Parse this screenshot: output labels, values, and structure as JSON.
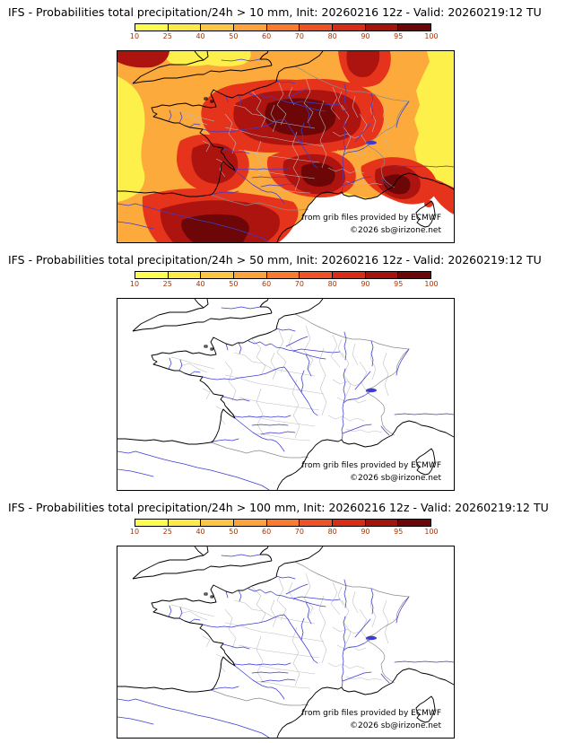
{
  "colorbar": {
    "tick_labels": [
      "10",
      "25",
      "40",
      "50",
      "60",
      "70",
      "80",
      "90",
      "95",
      "100"
    ],
    "segment_colors": [
      "#fdfd50",
      "#fde94a",
      "#fdc544",
      "#fda23c",
      "#f87b30",
      "#ef5224",
      "#d92c17",
      "#a5130e",
      "#6d0707"
    ],
    "tick_color": "#aa3300"
  },
  "panels": [
    {
      "id": "precip-gt-10mm",
      "title": "IFS - Probabilities total precipitation/24h > 10 mm, Init: 20260216 12z - Valid: 20260219:12 TU",
      "credit_line1": "from grib files provided by ECMWF",
      "credit_line2": "©2026 sb@irizone.net"
    },
    {
      "id": "precip-gt-50mm",
      "title": "IFS - Probabilities total precipitation/24h > 50 mm, Init: 20260216 12z - Valid: 20260219:12 TU",
      "credit_line1": "from grib files provided by ECMWF",
      "credit_line2": "©2026 sb@irizone.net"
    },
    {
      "id": "precip-gt-100mm",
      "title": "IFS - Probabilities total precipitation/24h > 100 mm, Init: 20260216 12z - Valid: 20260219:12 TU",
      "credit_line1": "from grib files provided by ECMWF",
      "credit_line2": "©2026 sb@irizone.net"
    }
  ],
  "map_fill_colors": {
    "yellow": "#fdf04a",
    "orange": "#fdaa3c",
    "red": "#e6331c",
    "dark_red": "#ad1410",
    "maroon": "#6d0707",
    "sea_white": "#ffffff"
  }
}
